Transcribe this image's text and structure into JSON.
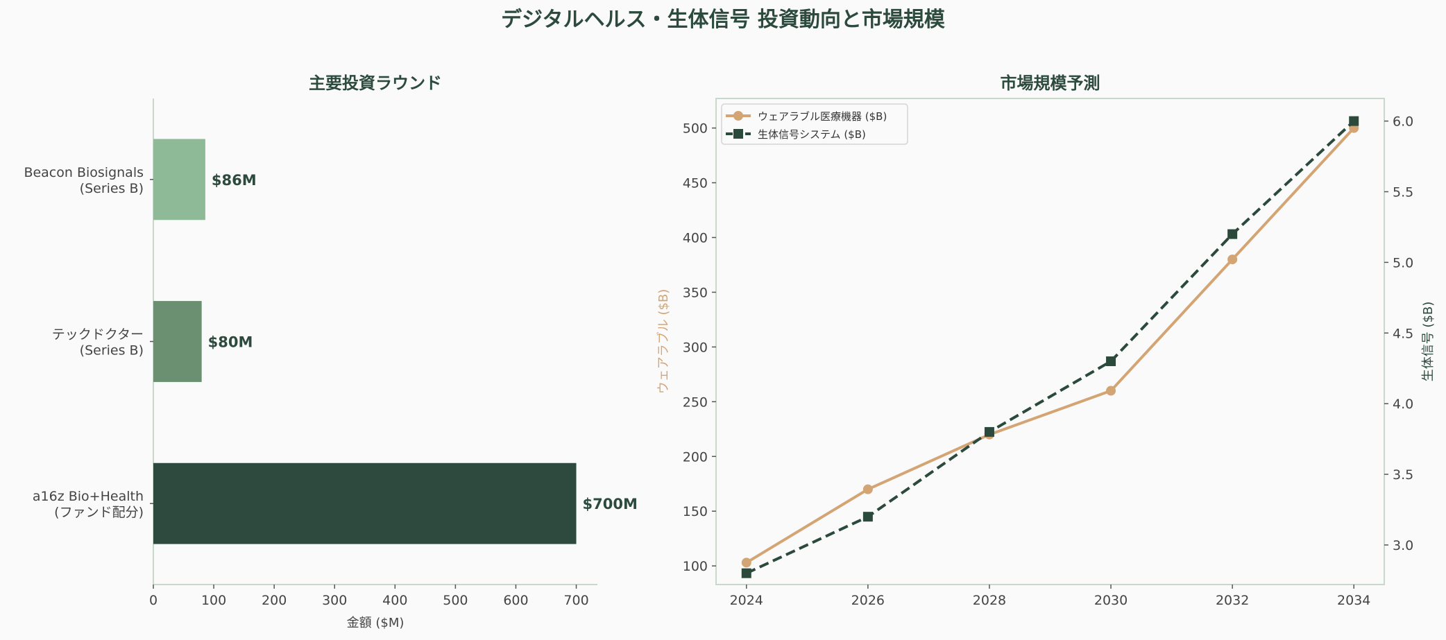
{
  "title": "デジタルヘルス・生体信号 投資動向と市場規模",
  "chart_data": [
    {
      "type": "bar",
      "orientation": "horizontal",
      "title": "主要投資ラウンド",
      "xlabel": "金額 ($M)",
      "ylabel": "",
      "categories": [
        [
          "Beacon Biosignals",
          "(Series B)"
        ],
        [
          "テックドクター",
          "(Series B)"
        ],
        [
          "a16z Bio+Health",
          "(ファンド配分)"
        ]
      ],
      "values": [
        86,
        80,
        700
      ],
      "data_labels": [
        "$86M",
        "$80M",
        "$700M"
      ],
      "colors": [
        "#8fba98",
        "#6b9071",
        "#2e4a3e"
      ],
      "xlim": [
        0,
        735
      ],
      "xticks": [
        0,
        100,
        200,
        300,
        400,
        500,
        600,
        700
      ],
      "grid": false
    },
    {
      "type": "line",
      "title": "市場規模予測",
      "x": [
        2024,
        2026,
        2028,
        2030,
        2032,
        2034
      ],
      "xlim": [
        2023.5,
        2034.5
      ],
      "xticks": [
        2024,
        2026,
        2028,
        2030,
        2032,
        2034
      ],
      "ylabel_left": "ウェアラブル ($B)",
      "ylabel_right": "生体信号 ($B)",
      "ylim_left": [
        83,
        527
      ],
      "yticks_left": [
        100,
        150,
        200,
        250,
        300,
        350,
        400,
        450,
        500
      ],
      "ylim_right": [
        2.72,
        6.16
      ],
      "yticks_right": [
        "3.0",
        "3.5",
        "4.0",
        "4.5",
        "5.0",
        "5.5",
        "6.0"
      ],
      "series": [
        {
          "name": "ウェアラブル医療機器 ($B)",
          "axis": "left",
          "values": [
            103,
            170,
            220,
            260,
            380,
            500
          ],
          "color": "#d4a574",
          "marker": "circle",
          "line": "solid"
        },
        {
          "name": "生体信号システム ($B)",
          "axis": "right",
          "values": [
            2.8,
            3.2,
            3.8,
            4.3,
            5.2,
            6.0
          ],
          "color": "#2b4a3c",
          "marker": "square",
          "line": "dashed"
        }
      ],
      "legend": "upper-left",
      "grid": false
    }
  ]
}
